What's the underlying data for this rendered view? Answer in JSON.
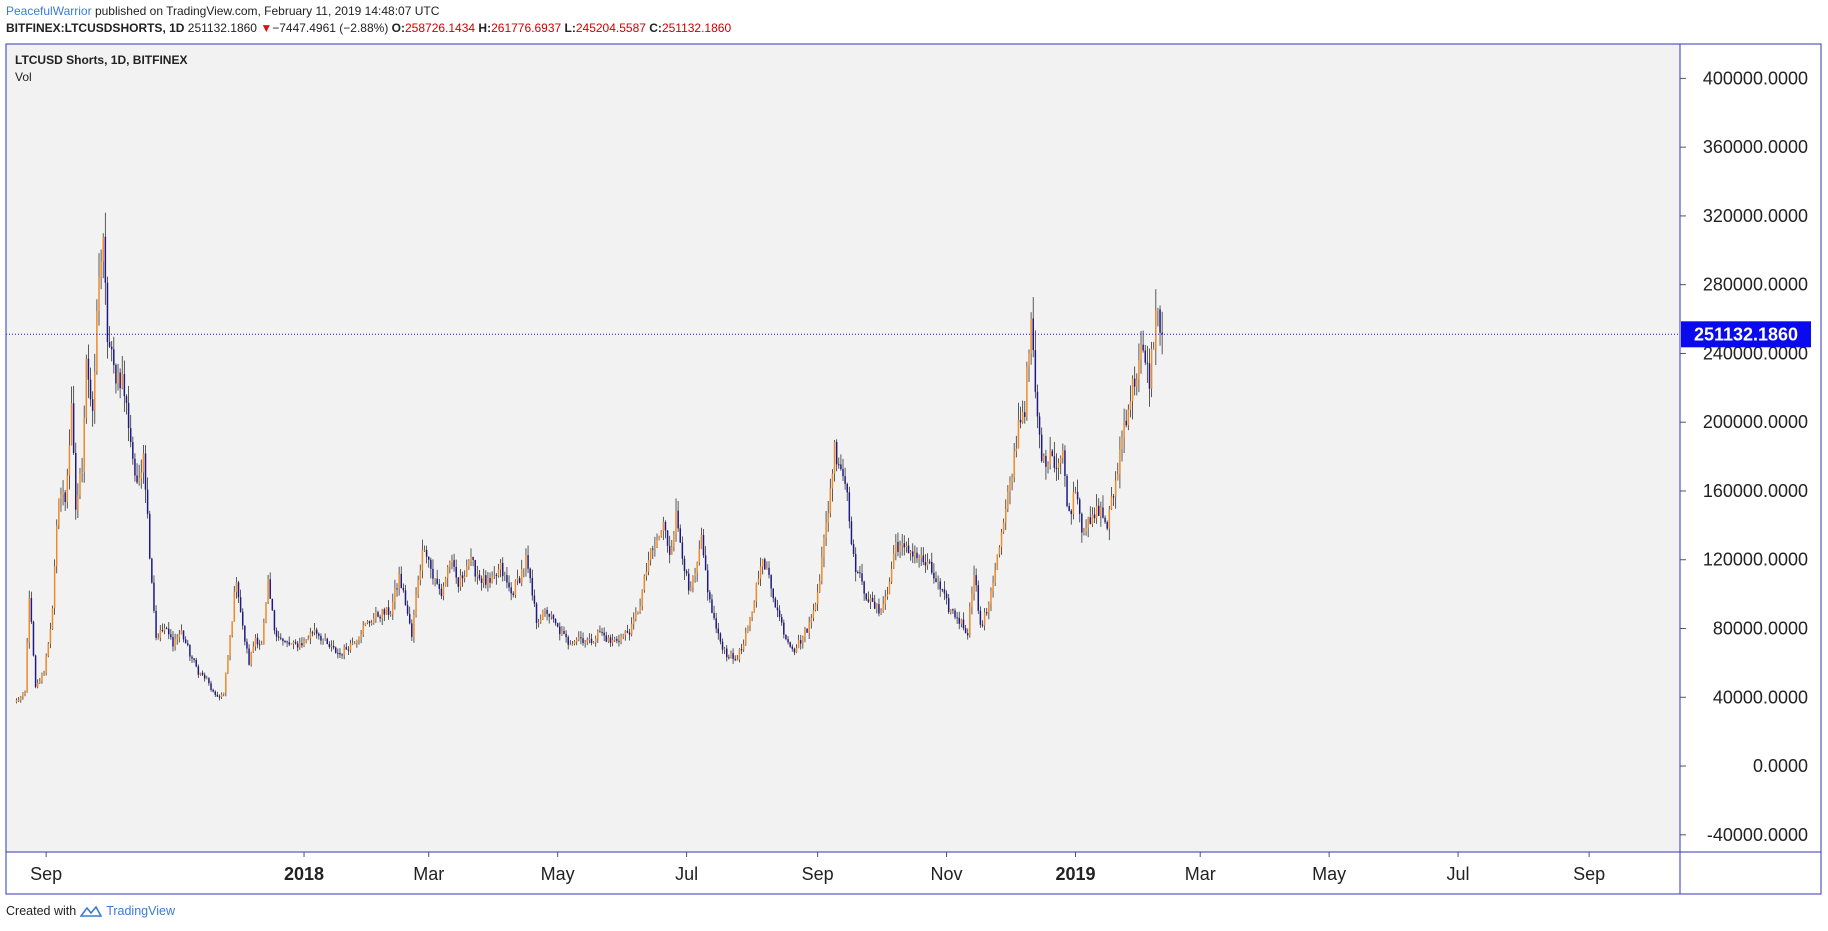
{
  "header": {
    "author": "PeacefulWarrior",
    "published_text": "published on TradingView.com, February 11, 2019 14:48:07 UTC",
    "symbol": "BITFINEX:LTCUSDSHORTS, 1D",
    "last_price": "251132.1860",
    "change_arrow": "▼",
    "change": "−7447.4961 (−2.88%)",
    "open_label": "O:",
    "open": "258726.1434",
    "high_label": "H:",
    "high": "261776.6937",
    "low_label": "L:",
    "low": "245204.5587",
    "close_label": "C:",
    "close": "251132.1860"
  },
  "legend": {
    "title": "LTCUSD Shorts, 1D, BITFINEX",
    "volume": "Vol"
  },
  "footer": {
    "created_with": "Created with",
    "brand": "TradingView"
  },
  "colors": {
    "up": "#ef8a2a",
    "down": "#1f1985",
    "pane_bg": "#f2f2f2",
    "border": "#3535b5",
    "price_label_bg": "#0a0aef"
  },
  "chart_data": {
    "type": "candlestick",
    "y_ticks": [
      400000,
      360000,
      320000,
      280000,
      240000,
      200000,
      160000,
      120000,
      80000,
      40000,
      0,
      -40000
    ],
    "y_tick_labels": [
      "400000.0000",
      "360000.0000",
      "320000.0000",
      "280000.0000",
      "240000.0000",
      "200000.0000",
      "160000.0000",
      "120000.0000",
      "80000.0000",
      "40000.0000",
      "0.0000",
      "-40000.0000"
    ],
    "ylim": [
      -50000,
      420000
    ],
    "x_ticks": [
      {
        "label": "Sep",
        "date": "2017-09-01",
        "bold": false
      },
      {
        "label": "2018",
        "date": "2018-01-01",
        "bold": true
      },
      {
        "label": "Mar",
        "date": "2018-03-01",
        "bold": false
      },
      {
        "label": "May",
        "date": "2018-05-01",
        "bold": false
      },
      {
        "label": "Jul",
        "date": "2018-07-01",
        "bold": false
      },
      {
        "label": "Sep",
        "date": "2018-09-01",
        "bold": false
      },
      {
        "label": "Nov",
        "date": "2018-11-01",
        "bold": false
      },
      {
        "label": "2019",
        "date": "2019-01-01",
        "bold": true
      },
      {
        "label": "Mar",
        "date": "2019-03-01",
        "bold": false
      },
      {
        "label": "May",
        "date": "2019-05-01",
        "bold": false
      },
      {
        "label": "Jul",
        "date": "2019-07-01",
        "bold": false
      },
      {
        "label": "Sep",
        "date": "2019-09-01",
        "bold": false
      }
    ],
    "xlim": [
      "2017-08-13",
      "2019-10-14"
    ],
    "current_price": 251132.186,
    "current_price_label": "251132.1860",
    "close_series": [
      [
        "2017-08-18",
        38000
      ],
      [
        "2017-08-22",
        42000
      ],
      [
        "2017-08-24",
        100000
      ],
      [
        "2017-08-27",
        45000
      ],
      [
        "2017-08-31",
        55000
      ],
      [
        "2017-09-04",
        90000
      ],
      [
        "2017-09-07",
        160000
      ],
      [
        "2017-09-10",
        155000
      ],
      [
        "2017-09-13",
        205000
      ],
      [
        "2017-09-15",
        150000
      ],
      [
        "2017-09-18",
        175000
      ],
      [
        "2017-09-20",
        240000
      ],
      [
        "2017-09-23",
        200000
      ],
      [
        "2017-09-26",
        290000
      ],
      [
        "2017-09-28",
        300000
      ],
      [
        "2017-09-30",
        250000
      ],
      [
        "2017-10-03",
        230000
      ],
      [
        "2017-10-07",
        225000
      ],
      [
        "2017-10-10",
        200000
      ],
      [
        "2017-10-14",
        160000
      ],
      [
        "2017-10-17",
        185000
      ],
      [
        "2017-10-20",
        125000
      ],
      [
        "2017-10-23",
        75000
      ],
      [
        "2017-10-27",
        80000
      ],
      [
        "2017-10-31",
        72000
      ],
      [
        "2017-11-04",
        78000
      ],
      [
        "2017-11-08",
        65000
      ],
      [
        "2017-11-12",
        55000
      ],
      [
        "2017-11-16",
        50000
      ],
      [
        "2017-11-20",
        40000
      ],
      [
        "2017-11-24",
        42000
      ],
      [
        "2017-11-27",
        75000
      ],
      [
        "2017-11-30",
        110000
      ],
      [
        "2017-12-03",
        80000
      ],
      [
        "2017-12-06",
        60000
      ],
      [
        "2017-12-09",
        75000
      ],
      [
        "2017-12-12",
        70000
      ],
      [
        "2017-12-15",
        105000
      ],
      [
        "2017-12-18",
        80000
      ],
      [
        "2017-12-22",
        72000
      ],
      [
        "2017-12-27",
        70000
      ],
      [
        "2018-01-01",
        72000
      ],
      [
        "2018-01-06",
        80000
      ],
      [
        "2018-01-12",
        70000
      ],
      [
        "2018-01-18",
        65000
      ],
      [
        "2018-01-24",
        72000
      ],
      [
        "2018-01-30",
        82000
      ],
      [
        "2018-02-05",
        88000
      ],
      [
        "2018-02-11",
        90000
      ],
      [
        "2018-02-15",
        110000
      ],
      [
        "2018-02-18",
        95000
      ],
      [
        "2018-02-21",
        75000
      ],
      [
        "2018-02-24",
        110000
      ],
      [
        "2018-02-27",
        130000
      ],
      [
        "2018-03-03",
        110000
      ],
      [
        "2018-03-07",
        100000
      ],
      [
        "2018-03-11",
        120000
      ],
      [
        "2018-03-15",
        105000
      ],
      [
        "2018-03-20",
        120000
      ],
      [
        "2018-03-25",
        110000
      ],
      [
        "2018-03-30",
        105000
      ],
      [
        "2018-04-04",
        115000
      ],
      [
        "2018-04-09",
        100000
      ],
      [
        "2018-04-13",
        110000
      ],
      [
        "2018-04-16",
        120000
      ],
      [
        "2018-04-21",
        85000
      ],
      [
        "2018-04-26",
        90000
      ],
      [
        "2018-05-01",
        80000
      ],
      [
        "2018-05-06",
        72000
      ],
      [
        "2018-05-11",
        75000
      ],
      [
        "2018-05-16",
        72000
      ],
      [
        "2018-05-21",
        78000
      ],
      [
        "2018-05-26",
        72000
      ],
      [
        "2018-05-31",
        75000
      ],
      [
        "2018-06-05",
        80000
      ],
      [
        "2018-06-09",
        95000
      ],
      [
        "2018-06-13",
        120000
      ],
      [
        "2018-06-17",
        130000
      ],
      [
        "2018-06-20",
        140000
      ],
      [
        "2018-06-23",
        125000
      ],
      [
        "2018-06-26",
        145000
      ],
      [
        "2018-06-29",
        125000
      ],
      [
        "2018-07-02",
        100000
      ],
      [
        "2018-07-05",
        110000
      ],
      [
        "2018-07-08",
        130000
      ],
      [
        "2018-07-12",
        95000
      ],
      [
        "2018-07-16",
        75000
      ],
      [
        "2018-07-20",
        65000
      ],
      [
        "2018-07-24",
        62000
      ],
      [
        "2018-07-28",
        70000
      ],
      [
        "2018-08-01",
        90000
      ],
      [
        "2018-08-05",
        120000
      ],
      [
        "2018-08-09",
        110000
      ],
      [
        "2018-08-13",
        90000
      ],
      [
        "2018-08-17",
        75000
      ],
      [
        "2018-08-21",
        68000
      ],
      [
        "2018-08-25",
        75000
      ],
      [
        "2018-08-29",
        85000
      ],
      [
        "2018-09-02",
        110000
      ],
      [
        "2018-09-06",
        150000
      ],
      [
        "2018-09-09",
        185000
      ],
      [
        "2018-09-12",
        175000
      ],
      [
        "2018-09-15",
        160000
      ],
      [
        "2018-09-18",
        120000
      ],
      [
        "2018-09-22",
        105000
      ],
      [
        "2018-09-26",
        95000
      ],
      [
        "2018-09-30",
        90000
      ],
      [
        "2018-10-04",
        100000
      ],
      [
        "2018-10-08",
        130000
      ],
      [
        "2018-10-12",
        125000
      ],
      [
        "2018-10-16",
        125000
      ],
      [
        "2018-10-20",
        120000
      ],
      [
        "2018-10-24",
        115000
      ],
      [
        "2018-10-28",
        105000
      ],
      [
        "2018-11-02",
        92000
      ],
      [
        "2018-11-07",
        85000
      ],
      [
        "2018-11-11",
        78000
      ],
      [
        "2018-11-14",
        115000
      ],
      [
        "2018-11-17",
        80000
      ],
      [
        "2018-11-20",
        90000
      ],
      [
        "2018-11-24",
        115000
      ],
      [
        "2018-11-28",
        140000
      ],
      [
        "2018-12-02",
        170000
      ],
      [
        "2018-12-05",
        200000
      ],
      [
        "2018-12-08",
        210000
      ],
      [
        "2018-12-11",
        255000
      ],
      [
        "2018-12-14",
        200000
      ],
      [
        "2018-12-17",
        175000
      ],
      [
        "2018-12-20",
        185000
      ],
      [
        "2018-12-23",
        175000
      ],
      [
        "2018-12-26",
        180000
      ],
      [
        "2018-12-29",
        145000
      ],
      [
        "2019-01-01",
        165000
      ],
      [
        "2019-01-04",
        140000
      ],
      [
        "2019-01-08",
        140000
      ],
      [
        "2019-01-12",
        150000
      ],
      [
        "2019-01-16",
        140000
      ],
      [
        "2019-01-20",
        165000
      ],
      [
        "2019-01-24",
        200000
      ],
      [
        "2019-01-28",
        220000
      ],
      [
        "2019-02-01",
        240000
      ],
      [
        "2019-02-05",
        225000
      ],
      [
        "2019-02-08",
        262000
      ],
      [
        "2019-02-10",
        258726
      ],
      [
        "2019-02-11",
        251132
      ]
    ]
  }
}
